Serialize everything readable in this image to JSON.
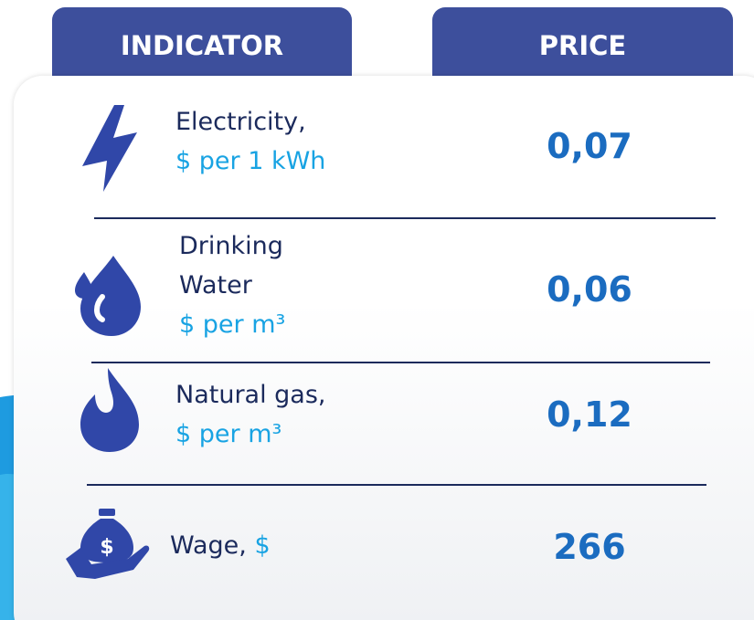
{
  "header": {
    "indicator": "INDICATOR",
    "price": "PRICE"
  },
  "rows": [
    {
      "label": [
        "Electricity,"
      ],
      "unit": "$ per 1 kWh",
      "price": "0,07"
    },
    {
      "label": [
        "Drinking",
        "Water"
      ],
      "unit": "$ per m³",
      "price": "0,06"
    },
    {
      "label": [
        "Natural gas,"
      ],
      "unit": "$ per m³",
      "price": "0,12"
    },
    {
      "label": [
        "Wage,"
      ],
      "unit": "$",
      "price": "266"
    }
  ]
}
